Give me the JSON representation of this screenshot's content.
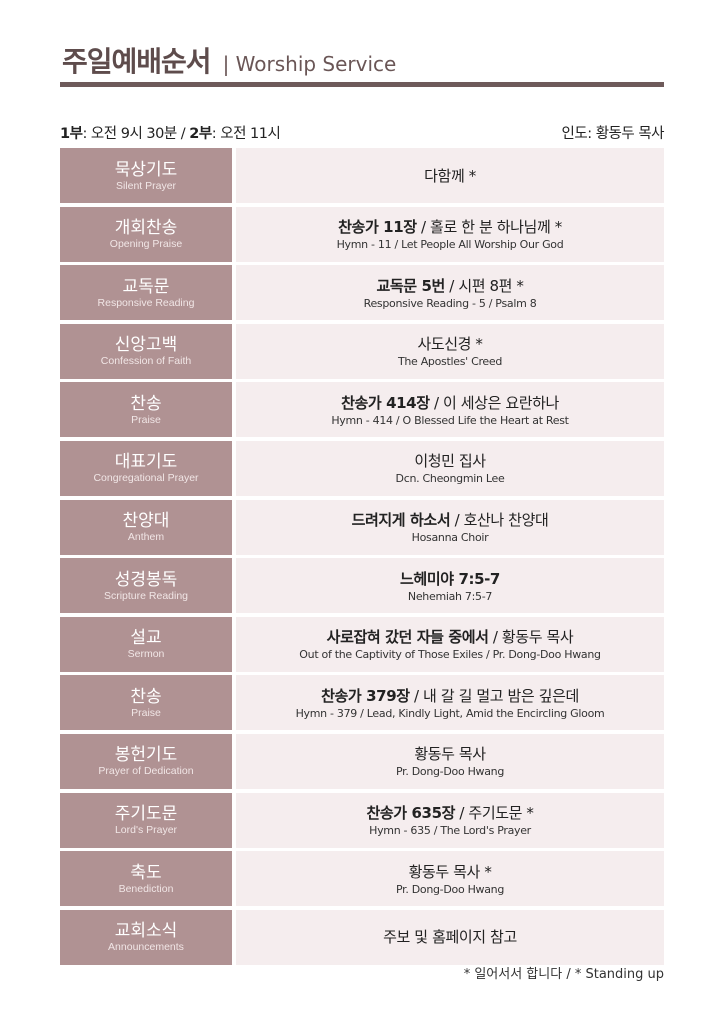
{
  "header": {
    "title_ko": "주일예배순서",
    "title_en": "| Worship Service"
  },
  "info": {
    "first_label": "1부",
    "first_time": ": 오전 9시 30분 / ",
    "second_label": "2부",
    "second_time": ": 오전 11시",
    "leader": "인도: 황동두 목사"
  },
  "colors": {
    "label_bg": "#b09293",
    "value_bg": "#f5edee",
    "rule": "#6e5a5a"
  },
  "rows": [
    {
      "ko": "묵상기도",
      "en": "Silent Prayer",
      "bold": "",
      "main": "다함께 *",
      "sub": ""
    },
    {
      "ko": "개회찬송",
      "en": "Opening Praise",
      "bold": "찬송가 11장",
      "main": " / 홀로 한 분 하나님께 *",
      "sub": "Hymn - 11 / Let People All Worship Our God"
    },
    {
      "ko": "교독문",
      "en": "Responsive Reading",
      "bold": "교독문 5번",
      "main": " / 시편 8편 *",
      "sub": "Responsive Reading - 5 / Psalm 8"
    },
    {
      "ko": "신앙고백",
      "en": "Confession of Faith",
      "bold": "",
      "main": "사도신경 *",
      "sub": "The Apostles' Creed"
    },
    {
      "ko": "찬송",
      "en": "Praise",
      "bold": "찬송가 414장",
      "main": " / 이 세상은 요란하나",
      "sub": "Hymn - 414 / O Blessed Life the Heart at Rest"
    },
    {
      "ko": "대표기도",
      "en": "Congregational Prayer",
      "bold": "",
      "main": "이청민 집사",
      "sub": "Dcn. Cheongmin Lee"
    },
    {
      "ko": "찬양대",
      "en": "Anthem",
      "bold": "드려지게 하소서",
      "main": " / 호산나 찬양대",
      "sub": "Hosanna Choir"
    },
    {
      "ko": "성경봉독",
      "en": "Scripture Reading",
      "bold": "느헤미야 7:5-7",
      "main": "",
      "sub": "Nehemiah 7:5-7"
    },
    {
      "ko": "설교",
      "en": "Sermon",
      "bold": "사로잡혀 갔던 자들 중에서",
      "main": " / 황동두 목사",
      "sub": "Out of the Captivity of Those Exiles / Pr. Dong-Doo Hwang"
    },
    {
      "ko": "찬송",
      "en": "Praise",
      "bold": "찬송가 379장",
      "main": " / 내 갈 길 멀고 밤은 깊은데",
      "sub": "Hymn - 379 / Lead, Kindly Light, Amid the Encircling Gloom"
    },
    {
      "ko": "봉헌기도",
      "en": "Prayer of Dedication",
      "bold": "",
      "main": "황동두 목사",
      "sub": "Pr. Dong-Doo Hwang"
    },
    {
      "ko": "주기도문",
      "en": "Lord's Prayer",
      "bold": "찬송가 635장",
      "main": " / 주기도문 *",
      "sub": "Hymn - 635 / The Lord's Prayer"
    },
    {
      "ko": "축도",
      "en": "Benediction",
      "bold": "",
      "main": "황동두 목사 *",
      "sub": "Pr. Dong-Doo Hwang"
    },
    {
      "ko": "교회소식",
      "en": "Announcements",
      "bold": "",
      "main": "주보 및 홈페이지 참고",
      "sub": ""
    }
  ],
  "footer": "* 일어서서 합니다 / * Standing up"
}
